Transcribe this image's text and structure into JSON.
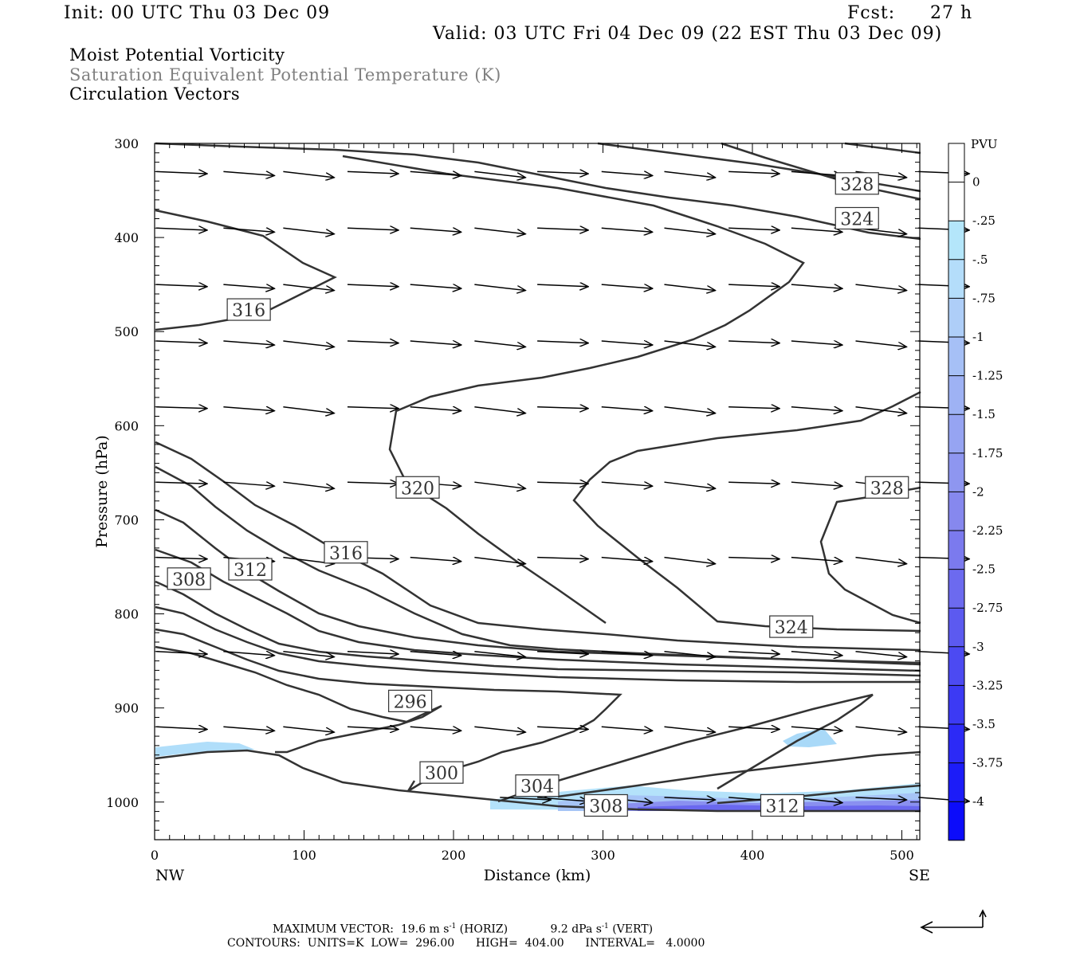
{
  "header": {
    "init": "Init: 00 UTC Thu 03 Dec 09",
    "fcst_label": "Fcst:",
    "fcst_hours": "27 h",
    "valid": "Valid: 03 UTC Fri 04 Dec 09 (22 EST Thu 03 Dec 09)"
  },
  "titles": {
    "line1": "Moist Potential Vorticity",
    "line2": "Saturation Equivalent Potential Temperature (K)",
    "line3": "Circulation Vectors"
  },
  "footer": {
    "max_vector_label": "MAXIMUM VECTOR:",
    "horiz_value": "19.6 m s",
    "horiz_unit": "(HORIZ)",
    "vert_value": "9.2 dPa s",
    "vert_unit": "(VERT)",
    "exponent": "-1",
    "contours_line": "CONTOURS:  UNITS=K  LOW=  296.00      HIGH=  404.00      INTERVAL=   4.0000"
  },
  "chart_data": {
    "type": "contour",
    "xlabel": "Distance (km)",
    "ylabel": "Pressure (hPa)",
    "xlim": [
      0,
      512
    ],
    "ylim": [
      1040,
      300
    ],
    "x_ticks": [
      0,
      100,
      200,
      300,
      400,
      500
    ],
    "y_ticks": [
      300,
      400,
      500,
      600,
      700,
      800,
      900,
      1000
    ],
    "x_end_labels": {
      "left": "NW",
      "right": "SE"
    },
    "colorbar": {
      "title": "PVU",
      "levels": [
        "0",
        "-.25",
        "-.5",
        "-.75",
        "-1",
        "-1.25",
        "-1.5",
        "-1.75",
        "-2",
        "-2.25",
        "-2.5",
        "-2.75",
        "-3",
        "-3.25",
        "-3.5",
        "-3.75",
        "-4"
      ],
      "colors": [
        "#ffffff",
        "#ffffff",
        "#b4e6fa",
        "#b4ddfa",
        "#aecef8",
        "#a6c0f6",
        "#9eb2f4",
        "#96a4f2",
        "#8e96f0",
        "#8688ee",
        "#7b7aee",
        "#6c6aef",
        "#5c5af0",
        "#4c4af2",
        "#3c3af4",
        "#2c2af6",
        "#1c1cf8",
        "#0c0cfa"
      ]
    },
    "contour_labels": [
      {
        "value": "328",
        "x": 470,
        "p": 343
      },
      {
        "value": "324",
        "x": 470,
        "p": 380
      },
      {
        "value": "316",
        "x": 63,
        "p": 477
      },
      {
        "value": "320",
        "x": 176,
        "p": 666
      },
      {
        "value": "328",
        "x": 490,
        "p": 666
      },
      {
        "value": "316",
        "x": 128,
        "p": 735
      },
      {
        "value": "312",
        "x": 64,
        "p": 753
      },
      {
        "value": "308",
        "x": 23,
        "p": 763
      },
      {
        "value": "324",
        "x": 426,
        "p": 814
      },
      {
        "value": "296",
        "x": 171,
        "p": 893
      },
      {
        "value": "300",
        "x": 192,
        "p": 969
      },
      {
        "value": "304",
        "x": 256,
        "p": 983
      },
      {
        "value": "308",
        "x": 302,
        "p": 1004
      },
      {
        "value": "312",
        "x": 420,
        "p": 1004
      }
    ],
    "vector_rows": [
      {
        "p": 330,
        "xs": [
          0,
          45,
          85,
          128,
          170,
          213,
          255,
          298,
          340,
          383,
          425,
          468,
          510
        ]
      },
      {
        "p": 390,
        "xs": [
          0,
          45,
          85,
          128,
          170,
          213,
          255,
          298,
          340,
          383,
          425,
          468,
          510
        ]
      },
      {
        "p": 450,
        "xs": [
          0,
          45,
          85,
          128,
          170,
          213,
          255,
          298,
          340,
          383,
          425,
          468,
          510
        ]
      },
      {
        "p": 510,
        "xs": [
          0,
          45,
          85,
          128,
          170,
          213,
          255,
          298,
          340,
          383,
          425,
          468,
          510
        ]
      },
      {
        "p": 580,
        "xs": [
          0,
          45,
          85,
          128,
          170,
          213,
          255,
          298,
          340,
          383,
          425,
          468,
          510
        ]
      },
      {
        "p": 660,
        "xs": [
          0,
          45,
          85,
          128,
          170,
          213,
          255,
          298,
          340,
          383,
          425,
          468,
          510
        ]
      },
      {
        "p": 740,
        "xs": [
          0,
          45,
          85,
          128,
          170,
          213,
          255,
          298,
          340,
          383,
          425,
          468,
          510
        ]
      },
      {
        "p": 840,
        "xs": [
          0,
          45,
          85,
          128,
          170,
          213,
          255,
          298,
          340,
          383,
          425,
          468,
          510
        ]
      },
      {
        "p": 920,
        "xs": [
          0,
          45,
          85,
          128,
          170,
          213,
          255,
          298,
          340,
          383,
          425,
          468,
          510
        ]
      },
      {
        "p": 995,
        "xs": [
          230,
          255,
          298,
          340,
          383,
          425,
          468,
          510
        ]
      }
    ]
  }
}
